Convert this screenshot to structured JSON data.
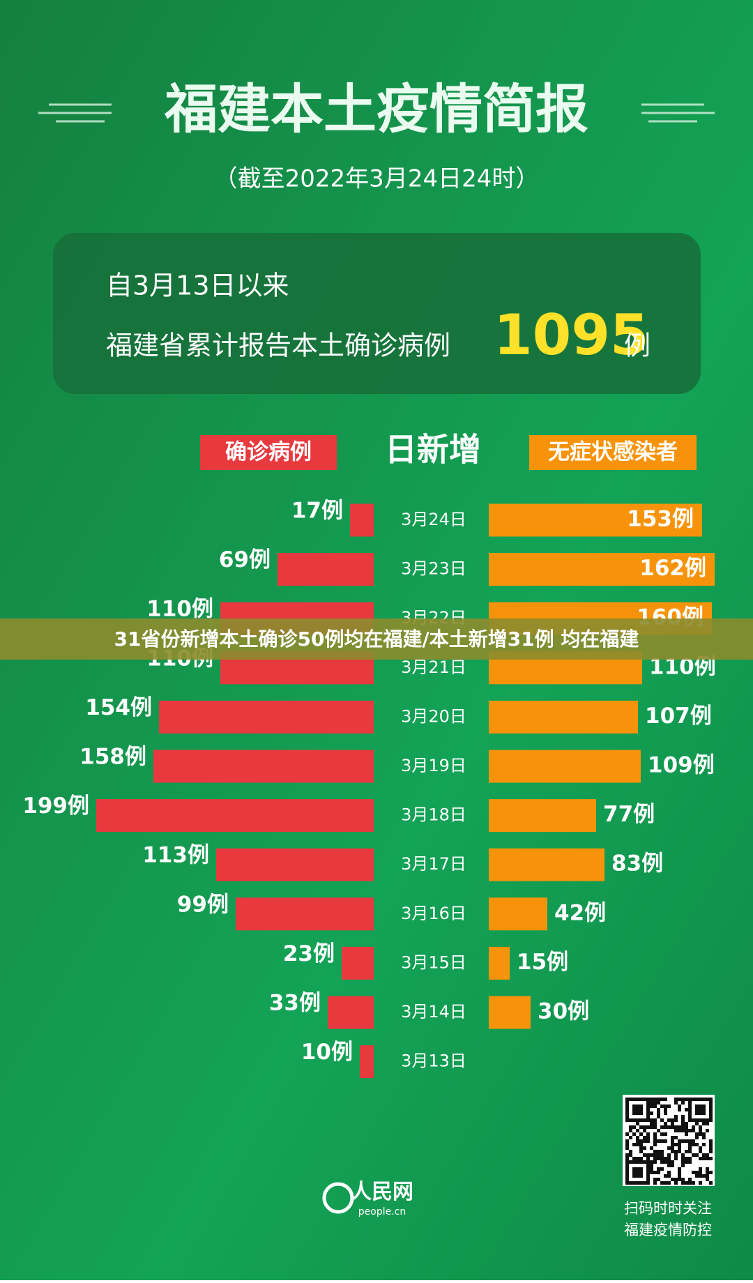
{
  "header": {
    "title": "福建本土疫情简报",
    "subtitle": "（截至2022年3月24日24时）"
  },
  "summary": {
    "since": "自3月13日以来",
    "label": "福建省累计报告本土确诊病例",
    "total": 1095,
    "unit": "例"
  },
  "chart_data": {
    "type": "butterfly",
    "title": "日新增",
    "categories": [
      "3月24日",
      "3月23日",
      "3月22日",
      "3月21日",
      "3月20日",
      "3月19日",
      "3月18日",
      "3月17日",
      "3月16日",
      "3月15日",
      "3月14日",
      "3月13日"
    ],
    "series": [
      {
        "name": "确诊病例",
        "color": "#e8393f",
        "values": [
          17,
          69,
          110,
          110,
          154,
          158,
          199,
          113,
          99,
          23,
          33,
          10
        ],
        "value_labels": [
          "17例",
          "69例",
          "110例",
          "110例",
          "154例",
          "158例",
          "199例",
          "113例",
          "99例",
          "23例",
          "33例",
          "10例"
        ]
      },
      {
        "name": "无症状感染者",
        "color": "#f7930a",
        "values": [
          153,
          162,
          160,
          110,
          107,
          109,
          77,
          83,
          42,
          15,
          30,
          null
        ],
        "value_labels": [
          "153例",
          "162例",
          "160例",
          "110例",
          "107例",
          "109例",
          "77例",
          "83例",
          "42例",
          "15例",
          "30例",
          null
        ]
      }
    ]
  },
  "banner": "31省份新增本土确诊50例均在福建/本土新增31例 均在福建",
  "logo": {
    "name": "人民网",
    "site": "people.cn"
  },
  "qr_caption": [
    "扫码时时关注",
    "福建疫情防控"
  ]
}
